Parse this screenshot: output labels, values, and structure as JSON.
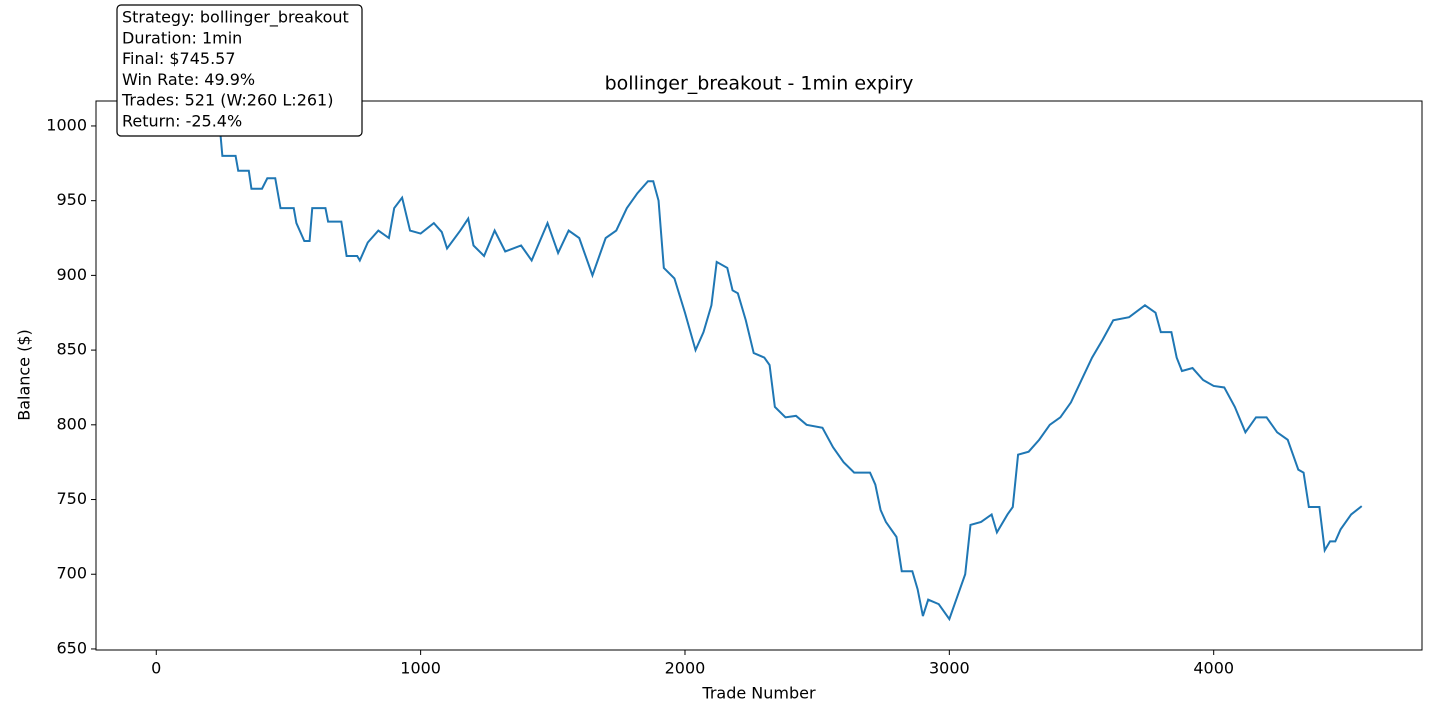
{
  "chart_data": {
    "type": "line",
    "title": "bollinger_breakout - 1min expiry",
    "xlabel": "Trade Number",
    "ylabel": "Balance ($)",
    "annotation": [
      "Strategy: bollinger_breakout",
      "Duration: 1min",
      "Final: $745.57",
      "Win Rate: 49.9%",
      "Trades: 521 (W:260 L:261)",
      "Return: -25.4%"
    ],
    "x": [
      0,
      240,
      250,
      300,
      310,
      350,
      360,
      400,
      420,
      450,
      470,
      520,
      530,
      560,
      580,
      590,
      640,
      650,
      700,
      720,
      760,
      770,
      800,
      840,
      880,
      900,
      930,
      960,
      1000,
      1050,
      1080,
      1100,
      1150,
      1180,
      1200,
      1240,
      1280,
      1320,
      1380,
      1420,
      1480,
      1520,
      1560,
      1600,
      1650,
      1700,
      1740,
      1780,
      1820,
      1860,
      1880,
      1900,
      1920,
      1960,
      2000,
      2040,
      2070,
      2100,
      2120,
      2160,
      2180,
      2200,
      2230,
      2260,
      2300,
      2320,
      2340,
      2380,
      2420,
      2460,
      2520,
      2560,
      2600,
      2640,
      2700,
      2720,
      2740,
      2760,
      2800,
      2820,
      2860,
      2880,
      2900,
      2920,
      2960,
      3000,
      3040,
      3060,
      3080,
      3120,
      3160,
      3180,
      3220,
      3240,
      3260,
      3300,
      3340,
      3380,
      3420,
      3460,
      3500,
      3540,
      3580,
      3620,
      3680,
      3740,
      3780,
      3800,
      3840,
      3860,
      3880,
      3920,
      3960,
      4000,
      4040,
      4080,
      4120,
      4160,
      4200,
      4240,
      4280,
      4300,
      4320,
      4340,
      4360,
      4400,
      4420,
      4440,
      4460,
      4480,
      4520,
      4560
    ],
    "series": [
      {
        "name": "Balance",
        "color": "#1f77b4",
        "values": [
          1000,
          1000,
          980,
          980,
          970,
          970,
          958,
          958,
          965,
          965,
          945,
          945,
          935,
          923,
          923,
          945,
          945,
          936,
          936,
          913,
          913,
          910,
          922,
          930,
          925,
          945,
          952,
          930,
          928,
          935,
          929,
          918,
          930,
          938,
          920,
          913,
          930,
          916,
          920,
          910,
          935,
          915,
          930,
          925,
          900,
          925,
          930,
          945,
          955,
          963,
          963,
          950,
          905,
          898,
          875,
          850,
          862,
          880,
          909,
          905,
          890,
          888,
          870,
          848,
          845,
          840,
          812,
          805,
          806,
          800,
          798,
          785,
          775,
          768,
          768,
          760,
          743,
          735,
          725,
          702,
          702,
          690,
          672,
          683,
          680,
          670,
          690,
          700,
          733,
          735,
          740,
          728,
          740,
          745,
          780,
          782,
          790,
          800,
          805,
          815,
          830,
          845,
          857,
          870,
          872,
          880,
          875,
          862,
          862,
          845,
          836,
          838,
          830,
          826,
          825,
          812,
          795,
          805,
          805,
          795,
          790,
          780,
          770,
          768,
          745,
          745,
          716,
          722,
          722,
          730,
          740,
          745.57
        ]
      }
    ],
    "xlim": [
      -228,
      4788
    ],
    "ylim": [
      649.3,
      1016.7
    ],
    "xticks": [
      0,
      1000,
      2000,
      3000,
      4000
    ],
    "yticks": [
      650,
      700,
      750,
      800,
      850,
      900,
      950,
      1000
    ]
  }
}
